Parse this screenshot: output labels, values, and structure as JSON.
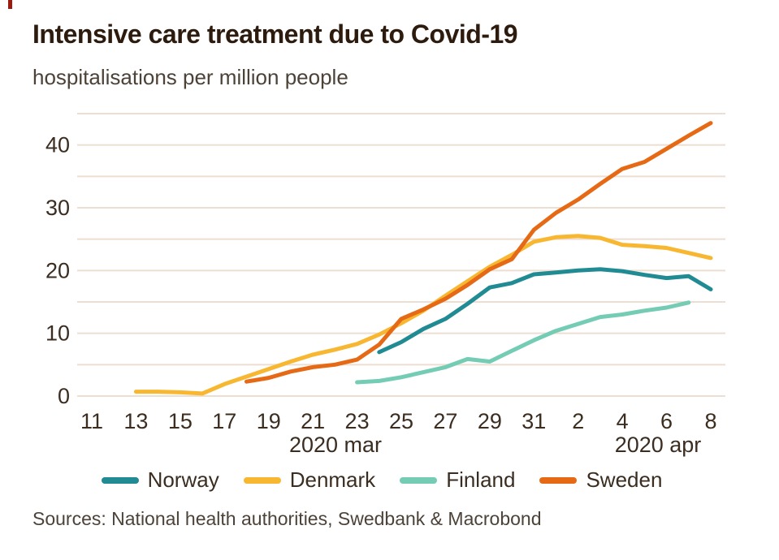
{
  "brand": {
    "mark_color": "#9e1a0f"
  },
  "header": {
    "title": "Intensive care treatment due to Covid-19",
    "subtitle": "hospitalisations per million people"
  },
  "footer": {
    "sources": "Sources: National health authorities, Swedbank & Macrobond"
  },
  "colors": {
    "grid": "#ecdfd2",
    "axis_text": "#3b2d20",
    "norway": "#218b94",
    "denmark": "#f8b731",
    "finland": "#74ccb4",
    "sweden": "#e66a15"
  },
  "chart_data": {
    "type": "line",
    "title": "Intensive care treatment due to Covid-19",
    "subtitle": "hospitalisations per million people",
    "ylim": [
      0,
      45
    ],
    "grid": "horizontal, every 5 units, light tan",
    "legend_position": "bottom",
    "y_ticks": [
      0,
      10,
      20,
      30,
      40
    ],
    "x_tick_labels": [
      "11",
      "13",
      "15",
      "17",
      "19",
      "21",
      "23",
      "25",
      "27",
      "29",
      "31",
      "2",
      "4",
      "6",
      "8"
    ],
    "x_group_labels": [
      "2020 mar",
      "2020 apr"
    ],
    "x_labels_days": [
      "Mar 11",
      "Mar 12",
      "Mar 13",
      "Mar 14",
      "Mar 15",
      "Mar 16",
      "Mar 17",
      "Mar 18",
      "Mar 19",
      "Mar 20",
      "Mar 21",
      "Mar 22",
      "Mar 23",
      "Mar 24",
      "Mar 25",
      "Mar 26",
      "Mar 27",
      "Mar 28",
      "Mar 29",
      "Mar 30",
      "Mar 31",
      "Apr 1",
      "Apr 2",
      "Apr 3",
      "Apr 4",
      "Apr 5",
      "Apr 6",
      "Apr 7",
      "Apr 8"
    ],
    "series": [
      {
        "name": "Norway",
        "color": "#218b94",
        "values": [
          null,
          null,
          null,
          null,
          null,
          null,
          null,
          null,
          null,
          null,
          null,
          null,
          null,
          7.0,
          8.6,
          10.7,
          12.3,
          14.7,
          17.3,
          18.0,
          19.4,
          19.7,
          20.0,
          20.2,
          19.9,
          19.3,
          18.8,
          19.1,
          17.0
        ]
      },
      {
        "name": "Denmark",
        "color": "#f8b731",
        "values": [
          null,
          null,
          0.7,
          0.7,
          0.6,
          0.4,
          1.9,
          3.1,
          4.3,
          5.5,
          6.6,
          7.4,
          8.3,
          9.8,
          11.6,
          13.6,
          16.0,
          18.3,
          20.6,
          22.5,
          24.6,
          25.3,
          25.5,
          25.2,
          24.1,
          23.9,
          23.6,
          22.8,
          22.0
        ]
      },
      {
        "name": "Finland",
        "color": "#74ccb4",
        "values": [
          null,
          null,
          null,
          null,
          null,
          null,
          null,
          null,
          null,
          null,
          null,
          null,
          2.2,
          2.4,
          3.0,
          3.8,
          4.6,
          5.9,
          5.5,
          7.2,
          8.9,
          10.4,
          11.5,
          12.6,
          13.0,
          13.6,
          14.1,
          14.9,
          null
        ]
      },
      {
        "name": "Sweden",
        "color": "#e66a15",
        "values": [
          null,
          null,
          null,
          null,
          null,
          null,
          null,
          2.3,
          2.9,
          3.9,
          4.6,
          5.0,
          5.8,
          8.2,
          12.3,
          13.8,
          15.5,
          17.7,
          20.2,
          21.8,
          26.5,
          29.2,
          31.3,
          33.8,
          36.2,
          37.3,
          39.4,
          41.5,
          43.5
        ]
      }
    ]
  }
}
